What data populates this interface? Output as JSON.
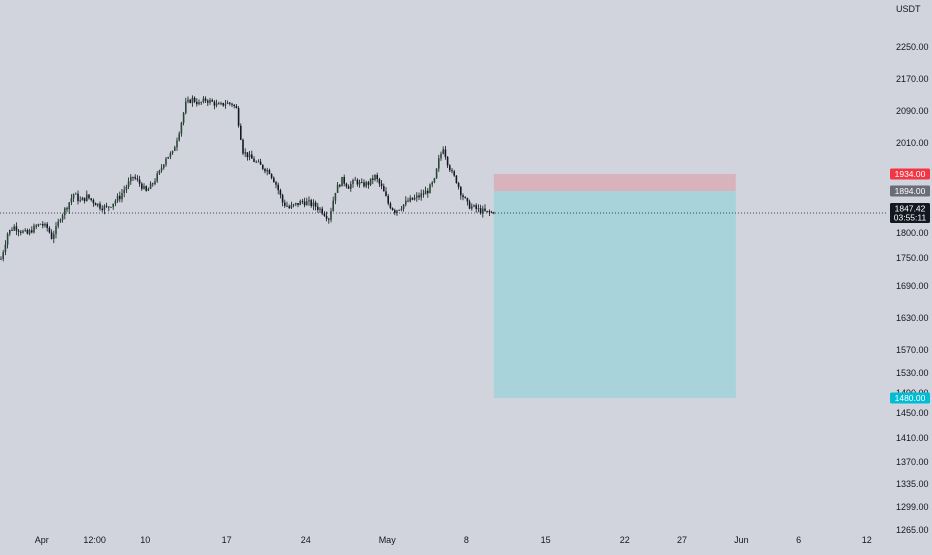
{
  "quote_currency": "USDT",
  "colors": {
    "background": "#d1d4dc",
    "candle_up": "#2a4733",
    "candle_down": "#131722",
    "stop_zone": "#d9b3bc",
    "target_zone": "#a8d3db",
    "stop_tag": "#f23645",
    "entry_tag": "#6a6d78",
    "target_tag": "#00bcd4",
    "current_tag": "#131722"
  },
  "chart_data": {
    "type": "candlestick",
    "title": "",
    "xlabel": "",
    "ylabel": "",
    "y_axis_position": "right",
    "ylim": [
      1240,
      2300
    ],
    "y_ticks": [
      "2250.00",
      "2170.00",
      "2090.00",
      "2010.00",
      "1800.00",
      "1750.00",
      "1690.00",
      "1630.00",
      "1570.00",
      "1530.00",
      "1490.00",
      "1450.00",
      "1410.00",
      "1370.00",
      "1335.00",
      "1299.00",
      "1265.00"
    ],
    "x_ticks": [
      "Apr",
      "12:00",
      "10",
      "17",
      "24",
      "May",
      "8",
      "15",
      "22",
      "27",
      "Jun",
      "6",
      "12"
    ],
    "price_path": [
      [
        0,
        1748
      ],
      [
        3,
        1800
      ],
      [
        6,
        1815
      ],
      [
        9,
        1805
      ],
      [
        12,
        1798
      ],
      [
        15,
        1812
      ],
      [
        18,
        1822
      ],
      [
        21,
        1812
      ],
      [
        23,
        1792
      ],
      [
        25,
        1810
      ],
      [
        27,
        1838
      ],
      [
        30,
        1862
      ],
      [
        33,
        1888
      ],
      [
        36,
        1872
      ],
      [
        39,
        1882
      ],
      [
        42,
        1872
      ],
      [
        45,
        1862
      ],
      [
        48,
        1858
      ],
      [
        51,
        1870
      ],
      [
        54,
        1882
      ],
      [
        57,
        1905
      ],
      [
        60,
        1928
      ],
      [
        63,
        1912
      ],
      [
        66,
        1892
      ],
      [
        69,
        1912
      ],
      [
        72,
        1938
      ],
      [
        75,
        1975
      ],
      [
        78,
        1985
      ],
      [
        81,
        2040
      ],
      [
        84,
        2108
      ],
      [
        87,
        2120
      ],
      [
        90,
        2108
      ],
      [
        93,
        2118
      ],
      [
        96,
        2112
      ],
      [
        99,
        2102
      ],
      [
        102,
        2110
      ],
      [
        105,
        2108
      ],
      [
        107,
        2095
      ],
      [
        110,
        1990
      ],
      [
        113,
        1975
      ],
      [
        116,
        1962
      ],
      [
        119,
        1950
      ],
      [
        122,
        1940
      ],
      [
        125,
        1910
      ],
      [
        128,
        1870
      ],
      [
        131,
        1858
      ],
      [
        134,
        1865
      ],
      [
        137,
        1872
      ],
      [
        140,
        1868
      ],
      [
        143,
        1862
      ],
      [
        146,
        1852
      ],
      [
        149,
        1835
      ],
      [
        152,
        1895
      ],
      [
        155,
        1920
      ],
      [
        158,
        1905
      ],
      [
        161,
        1918
      ],
      [
        164,
        1908
      ],
      [
        167,
        1912
      ],
      [
        170,
        1928
      ],
      [
        173,
        1902
      ],
      [
        176,
        1868
      ],
      [
        179,
        1852
      ],
      [
        182,
        1862
      ],
      [
        185,
        1872
      ],
      [
        188,
        1878
      ],
      [
        191,
        1885
      ],
      [
        194,
        1895
      ],
      [
        197,
        1918
      ],
      [
        199,
        1968
      ],
      [
        201,
        2000
      ],
      [
        203,
        1962
      ],
      [
        205,
        1935
      ],
      [
        207,
        1918
      ],
      [
        209,
        1892
      ],
      [
        212,
        1865
      ],
      [
        215,
        1858
      ],
      [
        218,
        1852
      ],
      [
        221,
        1848
      ],
      [
        224,
        1847.42
      ]
    ],
    "position": {
      "stop_price": 1934.0,
      "entry_price": 1894.0,
      "target_price": 1480.0,
      "current_price": 1847.42,
      "bar_countdown": "03:55:11",
      "start_bar": 224,
      "end_bar": 334
    }
  }
}
